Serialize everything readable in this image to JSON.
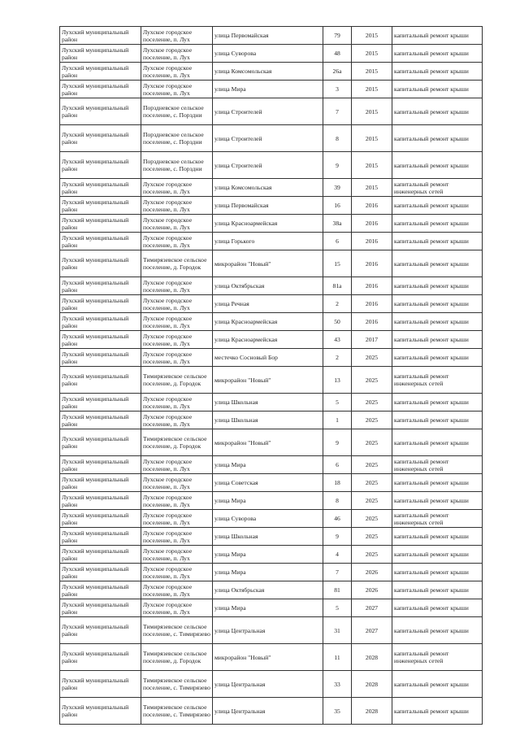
{
  "table": {
    "rows": [
      {
        "district": "Лухский муниципальный район",
        "settlement": "Лухское городское поселение, п. Лух",
        "street": "улица Первомайская",
        "house": "79",
        "year": "2015",
        "work": "капитальный ремонт крыши"
      },
      {
        "district": "Лухский муниципальный район",
        "settlement": "Лухское городское поселение, п. Лух",
        "street": "улица Суворова",
        "house": "48",
        "year": "2015",
        "work": "капитальный ремонт крыши"
      },
      {
        "district": "Лухский муниципальный район",
        "settlement": "Лухское городское поселение, п. Лух",
        "street": "улица Комсомольская",
        "house": "26а",
        "year": "2015",
        "work": "капитальный ремонт крыши"
      },
      {
        "district": "Лухский муниципальный район",
        "settlement": "Лухское городское поселение, п. Лух",
        "street": "улица Мира",
        "house": "3",
        "year": "2015",
        "work": "капитальный ремонт крыши"
      },
      {
        "district": "Лухский муниципальный район",
        "settlement": "Порздневское сельское поселение, с. Порздни",
        "street": "улица Строителей",
        "house": "7",
        "year": "2015",
        "work": "капитальный ремонт крыши"
      },
      {
        "district": "Лухский муниципальный район",
        "settlement": "Порздневское сельское поселение, с. Порздни",
        "street": "улица Строителей",
        "house": "8",
        "year": "2015",
        "work": "капитальный ремонт крыши"
      },
      {
        "district": "Лухский муниципальный район",
        "settlement": "Порздневское сельское поселение, с. Порздни",
        "street": "улица Строителей",
        "house": "9",
        "year": "2015",
        "work": "капитальный ремонт крыши"
      },
      {
        "district": "Лухский муниципальный район",
        "settlement": "Лухское городское поселение, п. Лух",
        "street": "улица Комсомольская",
        "house": "39",
        "year": "2015",
        "work": "капитальный ремонт инженерных сетей"
      },
      {
        "district": "Лухский муниципальный район",
        "settlement": "Лухское городское поселение, п. Лух",
        "street": "улица Первомайская",
        "house": "16",
        "year": "2016",
        "work": "капитальный ремонт крыши"
      },
      {
        "district": "Лухский муниципальный район",
        "settlement": "Лухское городское поселение, п. Лух",
        "street": "улица Красноармейская",
        "house": "38а",
        "year": "2016",
        "work": "капитальный ремонт крыши"
      },
      {
        "district": "Лухский муниципальный район",
        "settlement": "Лухское городское поселение, п. Лух",
        "street": "улица Горького",
        "house": "6",
        "year": "2016",
        "work": "капитальный ремонт крыши"
      },
      {
        "district": "Лухский муниципальный район",
        "settlement": "Тимирязевское сельское поселение, д. Городок",
        "street": "микрорайон \"Новый\"",
        "house": "15",
        "year": "2016",
        "work": "капитальный ремонт крыши"
      },
      {
        "district": "Лухский муниципальный район",
        "settlement": "Лухское городское поселение, п. Лух",
        "street": "улица Октябрьская",
        "house": "81а",
        "year": "2016",
        "work": "капитальный ремонт крыши"
      },
      {
        "district": "Лухский муниципальный район",
        "settlement": "Лухское городское поселение, п. Лух",
        "street": "улица Речная",
        "house": "2",
        "year": "2016",
        "work": "капитальный ремонт крыши"
      },
      {
        "district": "Лухский муниципальный район",
        "settlement": "Лухское городское поселение, п. Лух",
        "street": "улица Красноармейская",
        "house": "50",
        "year": "2016",
        "work": "капитальный ремонт крыши"
      },
      {
        "district": "Лухский муниципальный район",
        "settlement": "Лухское городское поселение, п. Лух",
        "street": "улица Красноармейская",
        "house": "43",
        "year": "2017",
        "work": "капитальный ремонт крыши"
      },
      {
        "district": "Лухский муниципальный район",
        "settlement": "Лухское городское поселение, п. Лух",
        "street": "местечко Сосновый Бор",
        "house": "2",
        "year": "2025",
        "work": "капитальный ремонт крыши"
      },
      {
        "district": "Лухский муниципальный район",
        "settlement": "Тимирязевское сельское поселение, д. Городок",
        "street": "микрорайон \"Новый\"",
        "house": "13",
        "year": "2025",
        "work": "капитальный ремонт инженерных сетей"
      },
      {
        "district": "Лухский муниципальный район",
        "settlement": "Лухское городское поселение, п. Лух",
        "street": "улица Школьная",
        "house": "5",
        "year": "2025",
        "work": "капитальный ремонт крыши"
      },
      {
        "district": "Лухский муниципальный район",
        "settlement": "Лухское городское поселение, п. Лух",
        "street": "улица Школьная",
        "house": "1",
        "year": "2025",
        "work": "капитальный ремонт крыши"
      },
      {
        "district": "Лухский муниципальный район",
        "settlement": "Тимирязевское сельское поселение, д. Городок",
        "street": "микрорайон \"Новый\"",
        "house": "9",
        "year": "2025",
        "work": "капитальный ремонт крыши"
      },
      {
        "district": "Лухский муниципальный район",
        "settlement": "Лухское городское поселение, п. Лух",
        "street": "улица Мира",
        "house": "6",
        "year": "2025",
        "work": "капитальный ремонт инженерных сетей"
      },
      {
        "district": "Лухский муниципальный район",
        "settlement": "Лухское городское поселение, п. Лух",
        "street": "улица Советская",
        "house": "18",
        "year": "2025",
        "work": "капитальный ремонт крыши"
      },
      {
        "district": "Лухский муниципальный район",
        "settlement": "Лухское городское поселение, п. Лух",
        "street": "улица Мира",
        "house": "8",
        "year": "2025",
        "work": "капитальный ремонт крыши"
      },
      {
        "district": "Лухский муниципальный район",
        "settlement": "Лухское городское поселение, п. Лух",
        "street": "улица Суворова",
        "house": "46",
        "year": "2025",
        "work": "капитальный ремонт инженерных сетей"
      },
      {
        "district": "Лухский муниципальный район",
        "settlement": "Лухское городское поселение, п. Лух",
        "street": "улица Школьная",
        "house": "9",
        "year": "2025",
        "work": "капитальный ремонт крыши"
      },
      {
        "district": "Лухский муниципальный район",
        "settlement": "Лухское городское поселение, п. Лух",
        "street": "улица Мира",
        "house": "4",
        "year": "2025",
        "work": "капитальный ремонт крыши"
      },
      {
        "district": "Лухский муниципальный район",
        "settlement": "Лухское городское поселение, п. Лух",
        "street": "улица Мира",
        "house": "7",
        "year": "2026",
        "work": "капитальный ремонт крыши"
      },
      {
        "district": "Лухский муниципальный район",
        "settlement": "Лухское городское поселение, п. Лух",
        "street": "улица Октябрьская",
        "house": "81",
        "year": "2026",
        "work": "капитальный ремонт крыши"
      },
      {
        "district": "Лухский муниципальный район",
        "settlement": "Лухское городское поселение, п. Лух",
        "street": "улица Мира",
        "house": "5",
        "year": "2027",
        "work": "капитальный ремонт крыши"
      },
      {
        "district": "Лухский муниципальный район",
        "settlement": "Тимирязевское сельское поселение, с. Тимирязево",
        "street": "улица Центральная",
        "house": "31",
        "year": "2027",
        "work": "капитальный ремонт крыши"
      },
      {
        "district": "Лухский муниципальный район",
        "settlement": "Тимирязевское сельское поселение, д. Городок",
        "street": "микрорайон \"Новый\"",
        "house": "11",
        "year": "2028",
        "work": "капитальный ремонт инженерных сетей"
      },
      {
        "district": "Лухский муниципальный район",
        "settlement": "Тимирязевское сельское поселение, с. Тимирязево",
        "street": "улица Центральная",
        "house": "33",
        "year": "2028",
        "work": "капитальный ремонт крыши"
      },
      {
        "district": "Лухский муниципальный район",
        "settlement": "Тимирязевское сельское поселение, с. Тимирязево",
        "street": "улица Центральная",
        "house": "35",
        "year": "2028",
        "work": "капитальный ремонт крыши"
      }
    ]
  }
}
